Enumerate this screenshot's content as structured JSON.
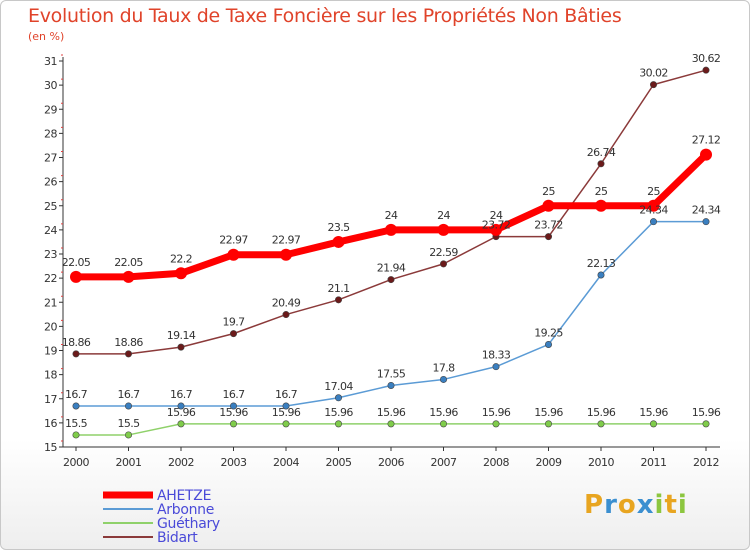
{
  "title": "Evolution du Taux de Taxe Foncière sur les Propriétés Non Bâties",
  "unit_label": "(en %)",
  "logo": {
    "letters": [
      "P",
      "r",
      "o",
      "x",
      "i",
      "t",
      "i"
    ],
    "colors": [
      "#e8a520",
      "#3b8fd0",
      "#e8a520",
      "#3b8fd0",
      "#8cc63f",
      "#e8a520",
      "#8cc63f"
    ]
  },
  "chart_data": {
    "type": "line",
    "title": "Evolution du Taux de Taxe Foncière sur les Propriétés Non Bâties",
    "ylabel": "(en %)",
    "xlabel": "",
    "ylim": [
      15,
      31
    ],
    "yticks": [
      15,
      16,
      17,
      18,
      19,
      20,
      21,
      22,
      23,
      24,
      25,
      26,
      27,
      28,
      29,
      30,
      31
    ],
    "grid": false,
    "legend_position": "bottom-left",
    "x": [
      "2000",
      "2001",
      "2002",
      "2003",
      "2004",
      "2005",
      "2006",
      "2007",
      "2008",
      "2009",
      "2010",
      "2011",
      "2012"
    ],
    "series": [
      {
        "name": "AHETZE",
        "color": "#ff0000",
        "values": [
          22.05,
          22.05,
          22.2,
          22.97,
          22.97,
          23.5,
          24,
          24,
          24,
          25,
          25,
          25,
          27.12
        ],
        "labels": [
          "22.05",
          "22.05",
          "22.2",
          "22.97",
          "22.97",
          "23.5",
          "24",
          "24",
          "24",
          "25",
          "25",
          "25",
          "27.12"
        ]
      },
      {
        "name": "Arbonne",
        "color": "#5b9bd5",
        "values": [
          16.7,
          16.7,
          16.7,
          16.7,
          16.7,
          17.04,
          17.55,
          17.8,
          18.33,
          19.25,
          22.13,
          24.34,
          24.34
        ],
        "labels": [
          "16.7",
          "16.7",
          "16.7",
          "16.7",
          "16.7",
          "17.04",
          "17.55",
          "17.8",
          "18.33",
          "19.25",
          "22.13",
          "24.34",
          "24.34"
        ]
      },
      {
        "name": "Guéthary",
        "color": "#8fd16a",
        "values": [
          15.5,
          15.5,
          15.96,
          15.96,
          15.96,
          15.96,
          15.96,
          15.96,
          15.96,
          15.96,
          15.96,
          15.96,
          15.96
        ],
        "labels": [
          "15.5",
          "15.5",
          "15.96",
          "15.96",
          "15.96",
          "15.96",
          "15.96",
          "15.96",
          "15.96",
          "15.96",
          "15.96",
          "15.96",
          "15.96"
        ]
      },
      {
        "name": "Bidart",
        "color": "#8b3a3a",
        "values": [
          18.86,
          18.86,
          19.14,
          19.7,
          20.49,
          21.1,
          21.94,
          22.59,
          23.72,
          23.72,
          26.74,
          30.02,
          30.62
        ],
        "labels": [
          "18.86",
          "18.86",
          "19.14",
          "19.7",
          "20.49",
          "21.1",
          "21.94",
          "22.59",
          "23.72",
          "23.72",
          "26.74",
          "30.02",
          "30.62"
        ]
      }
    ]
  }
}
